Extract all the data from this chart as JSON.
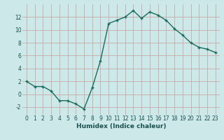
{
  "x": [
    0,
    1,
    2,
    3,
    4,
    5,
    6,
    7,
    8,
    9,
    10,
    11,
    12,
    13,
    14,
    15,
    16,
    17,
    18,
    19,
    20,
    21,
    22,
    23
  ],
  "y": [
    2,
    1.2,
    1.2,
    0.5,
    -1,
    -1,
    -1.5,
    -2.3,
    1.0,
    5.2,
    11.0,
    11.5,
    12.0,
    13.0,
    11.8,
    12.8,
    12.3,
    11.5,
    10.2,
    9.2,
    8.0,
    7.3,
    7.0,
    6.5
  ],
  "xlabel": "Humidex (Indice chaleur)",
  "xlim": [
    -0.5,
    23.5
  ],
  "ylim": [
    -3.2,
    14.0
  ],
  "yticks": [
    -2,
    0,
    2,
    4,
    6,
    8,
    10,
    12
  ],
  "xticks": [
    0,
    1,
    2,
    3,
    4,
    5,
    6,
    7,
    8,
    9,
    10,
    11,
    12,
    13,
    14,
    15,
    16,
    17,
    18,
    19,
    20,
    21,
    22,
    23
  ],
  "line_color": "#1a6b5a",
  "marker": "+",
  "bg_color": "#cce8e8",
  "grid_color": "#c8a8a8",
  "label_color": "#1a5050",
  "tick_label_size": 5.5,
  "xlabel_size": 6.5,
  "marker_size": 3.5,
  "line_width": 1.0,
  "markeredgewidth": 1.0
}
